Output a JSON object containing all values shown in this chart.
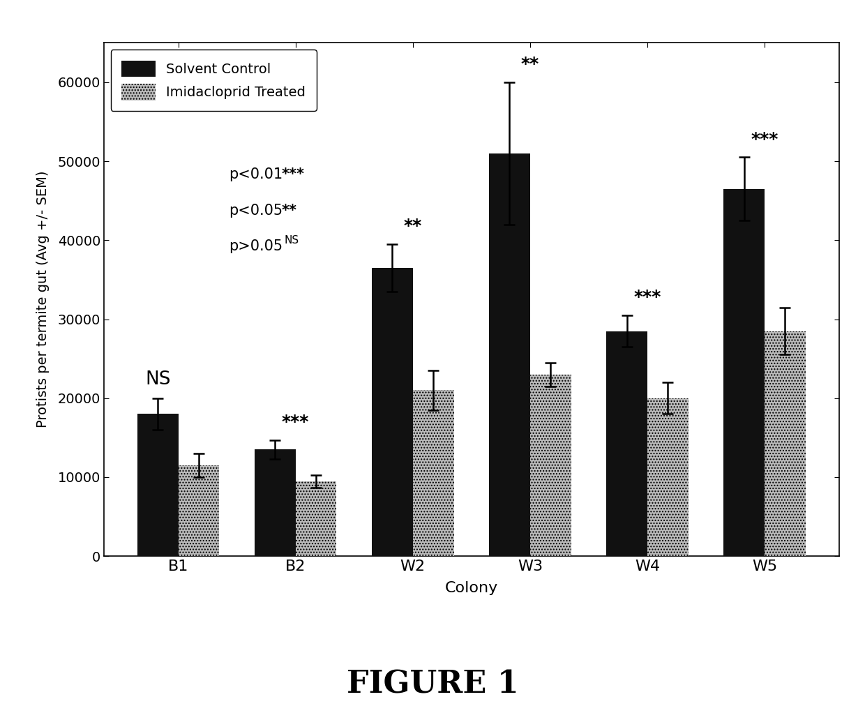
{
  "categories": [
    "B1",
    "B2",
    "W2",
    "W3",
    "W4",
    "W5"
  ],
  "control_values": [
    18000,
    13500,
    36500,
    51000,
    28500,
    46500
  ],
  "control_errors": [
    2000,
    1200,
    3000,
    9000,
    2000,
    4000
  ],
  "treated_values": [
    11500,
    9500,
    21000,
    23000,
    20000,
    28500
  ],
  "treated_errors": [
    1500,
    800,
    2500,
    1500,
    2000,
    3000
  ],
  "significance": [
    "NS",
    "***",
    "**",
    "**",
    "***",
    "***"
  ],
  "control_color": "#111111",
  "treated_color": "#bbbbbb",
  "treated_hatch": "///",
  "ylabel": "Protists per termite gut (Avg +/- SEM)",
  "xlabel": "Colony",
  "ylim": [
    0,
    65000
  ],
  "yticks": [
    0,
    10000,
    20000,
    30000,
    40000,
    50000,
    60000
  ],
  "legend_labels": [
    "Solvent Control",
    "Imidacloprid Treated"
  ],
  "figure_title": "FIGURE 1",
  "bar_width": 0.35
}
